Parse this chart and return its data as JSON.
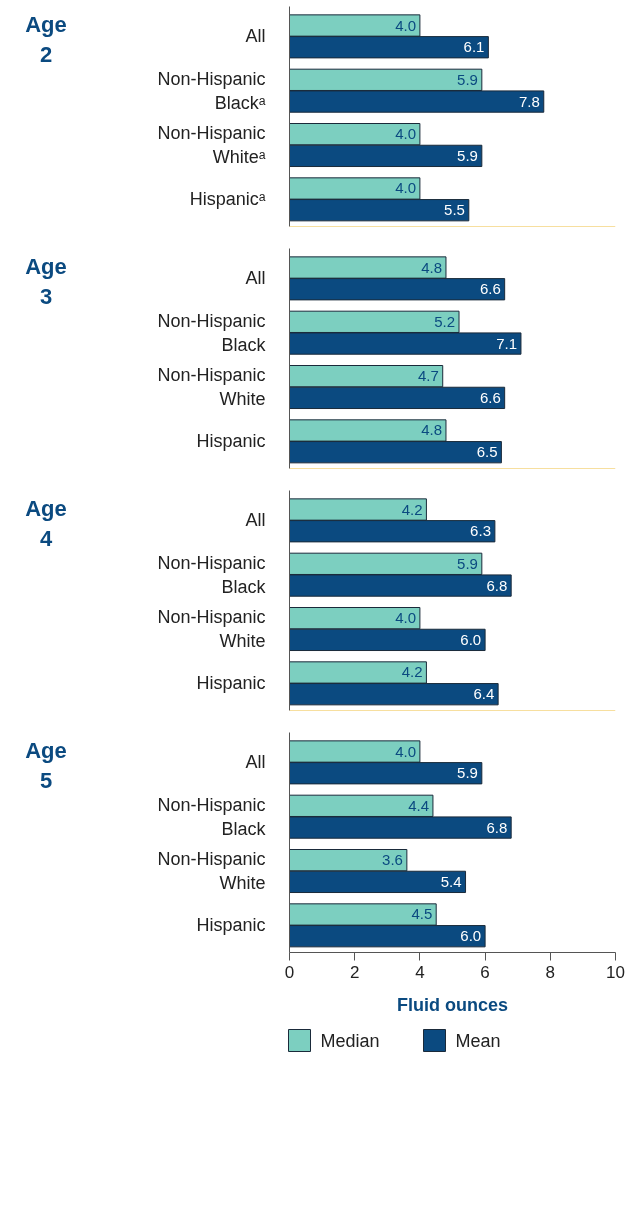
{
  "chart_data": [
    {
      "type": "bar",
      "orientation": "horizontal",
      "title": "Age 2",
      "categories": [
        "All",
        "Non-Hispanic Blackᵃ",
        "Non-Hispanic Whiteᵃ",
        "Hispanicᵃ"
      ],
      "xlim": [
        0,
        10
      ],
      "xticks": [
        0,
        2,
        4,
        6,
        8,
        10
      ],
      "tick_labels": "y",
      "grid": false,
      "series": [
        {
          "color": "#7ccfc0",
          "values": [
            4.0,
            5.9,
            4.0,
            4.0
          ],
          "value_labels": [
            "4.0",
            "5.9",
            "4.0",
            "4.0"
          ]
        },
        {
          "color": "#0b4a80",
          "values": [
            6.1,
            7.8,
            5.9,
            5.5
          ],
          "value_labels": [
            "6.1",
            "7.8",
            "5.9",
            "5.5"
          ]
        }
      ]
    },
    {
      "type": "bar",
      "orientation": "horizontal",
      "title": "Age 3",
      "categories": [
        "All",
        "Non-Hispanic Black",
        "Non-Hispanic White",
        "Hispanic"
      ],
      "xlim": [
        0,
        10
      ],
      "xticks": [
        0,
        2,
        4,
        6,
        8,
        10
      ],
      "tick_labels": "y",
      "grid": false,
      "series": [
        {
          "color": "#7ccfc0",
          "values": [
            4.8,
            5.2,
            4.7,
            4.8
          ],
          "value_labels": [
            "4.8",
            "5.2",
            "4.7",
            "4.8"
          ]
        },
        {
          "color": "#0b4a80",
          "values": [
            6.6,
            7.1,
            6.6,
            6.5
          ],
          "value_labels": [
            "6.6",
            "7.1",
            "6.6",
            "6.5"
          ]
        }
      ]
    },
    {
      "type": "bar",
      "orientation": "horizontal",
      "title": "Age 4",
      "categories": [
        "All",
        "Non-Hispanic Black",
        "Non-Hispanic White",
        "Hispanic"
      ],
      "xlim": [
        0,
        10
      ],
      "xticks": [
        0,
        2,
        4,
        6,
        8,
        10
      ],
      "tick_labels": "y",
      "grid": false,
      "series": [
        {
          "color": "#7ccfc0",
          "values": [
            4.2,
            5.9,
            4.0,
            4.2
          ],
          "value_labels": [
            "4.2",
            "5.9",
            "4.0",
            "4.2"
          ]
        },
        {
          "color": "#0b4a80",
          "values": [
            6.3,
            6.8,
            6.0,
            6.4
          ],
          "value_labels": [
            "6.3",
            "6.8",
            "6.0",
            "6.4"
          ]
        }
      ]
    },
    {
      "type": "bar",
      "orientation": "horizontal",
      "title": "Age 5",
      "categories": [
        "All",
        "Non-Hispanic Black",
        "Non-Hispanic White",
        "Hispanic"
      ],
      "xlim": [
        0,
        10
      ],
      "xticks": [
        0,
        2,
        4,
        6,
        8,
        10
      ],
      "xlabel": "Fluid ounces",
      "grid": false,
      "legend": "bottom",
      "series": [
        {
          "name": "Median",
          "color": "#7ccfc0",
          "values": [
            4.0,
            4.4,
            3.6,
            4.5
          ],
          "value_labels": [
            "4.0",
            "4.4",
            "3.6",
            "4.5"
          ]
        },
        {
          "name": "Mean",
          "color": "#0b4a80",
          "values": [
            5.9,
            6.8,
            5.4,
            6.0
          ],
          "value_labels": [
            "5.9",
            "6.8",
            "5.4",
            "6.0"
          ]
        }
      ]
    }
  ]
}
